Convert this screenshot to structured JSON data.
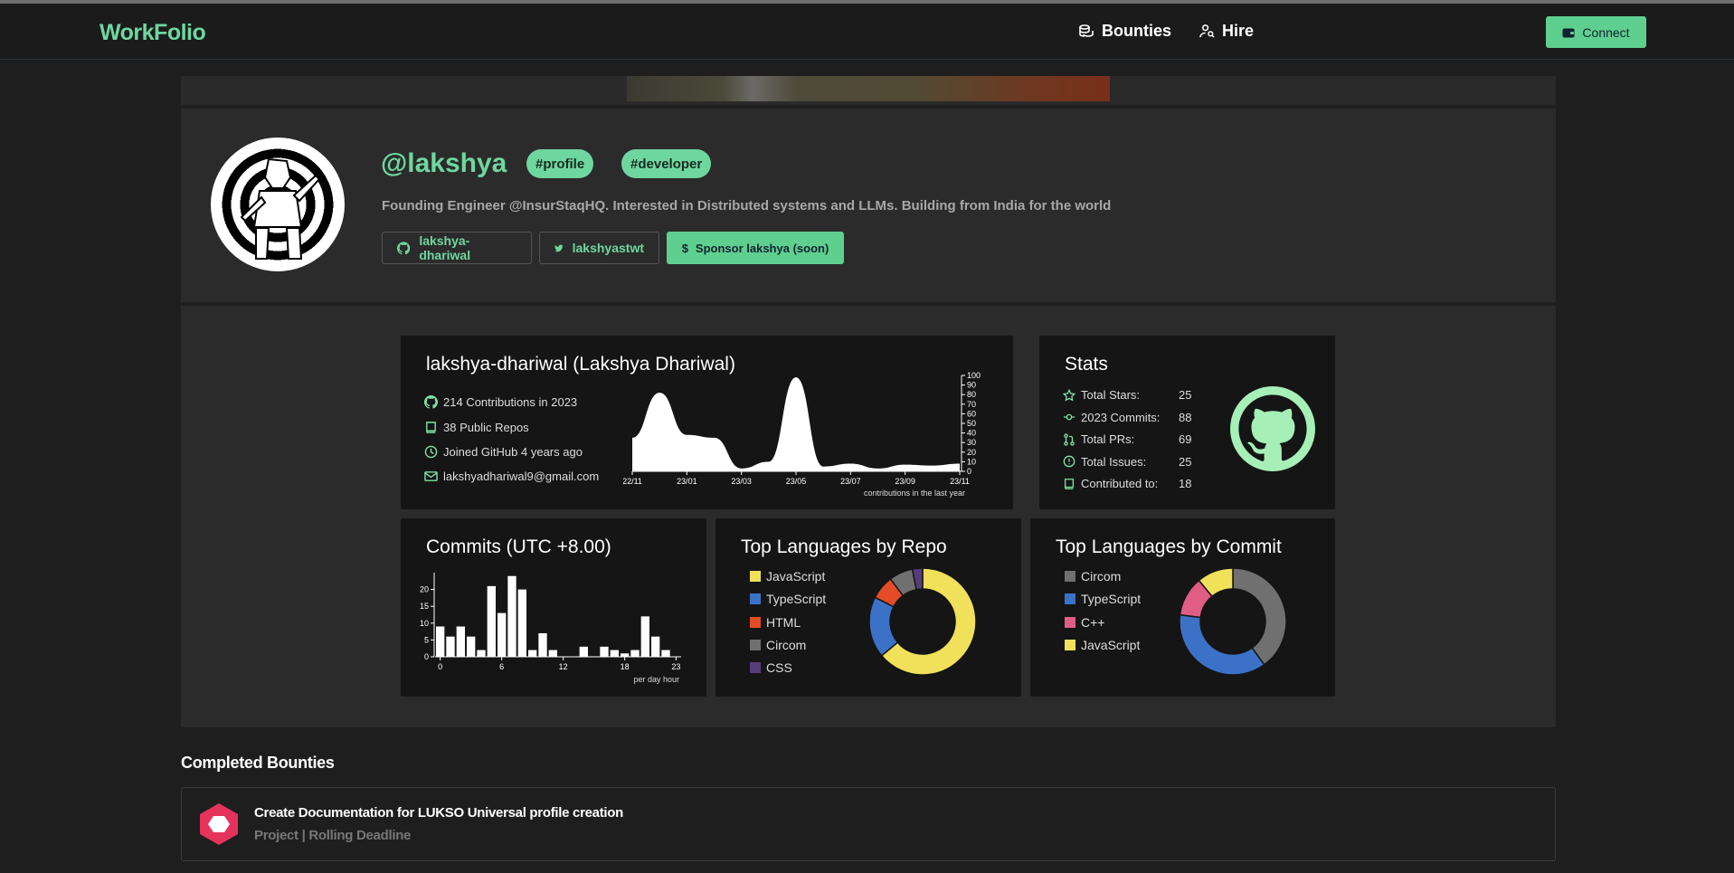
{
  "nav": {
    "logo": "WorkFolio",
    "bounties": "Bounties",
    "hire": "Hire",
    "connect": "Connect"
  },
  "profile": {
    "handle": "@lakshya",
    "tags": [
      "#profile",
      "#developer"
    ],
    "bio": "Founding Engineer @InsurStaqHQ. Interested in Distributed systems and LLMs. Building from India for the world",
    "github": "lakshya-dhariwal",
    "twitter": "lakshyastwt",
    "sponsor": "Sponsor lakshya (soon)"
  },
  "github_card": {
    "title": "lakshya-dhariwal (Lakshya Dhariwal)",
    "contributions": "214 Contributions in 2023",
    "repos": "38 Public Repos",
    "joined": "Joined GitHub 4 years ago",
    "email": "lakshyadhariwal9@gmail.com"
  },
  "stats_card": {
    "title": "Stats",
    "rows": [
      {
        "label": "Total Stars:",
        "value": "25",
        "icon": "star-icon"
      },
      {
        "label": "2023 Commits:",
        "value": "88",
        "icon": "commit-icon"
      },
      {
        "label": "Total PRs:",
        "value": "69",
        "icon": "pull-request-icon"
      },
      {
        "label": "Total Issues:",
        "value": "25",
        "icon": "issue-icon"
      },
      {
        "label": "Contributed to:",
        "value": "18",
        "icon": "repo-icon"
      }
    ]
  },
  "commits_card": {
    "title": "Commits (UTC +8.00)"
  },
  "repo_lang_card": {
    "title": "Top Languages by Repo"
  },
  "commit_lang_card": {
    "title": "Top Languages by Commit"
  },
  "chart_data": [
    {
      "type": "area",
      "title": "",
      "xlabel": "contributions in the last year",
      "x": [
        "22/11",
        "22/12",
        "23/01",
        "23/02",
        "23/03",
        "23/04",
        "23/05",
        "23/06",
        "23/07",
        "23/08",
        "23/09",
        "23/10",
        "23/11"
      ],
      "values": [
        35,
        82,
        38,
        35,
        3,
        10,
        98,
        5,
        8,
        3,
        7,
        6,
        8
      ],
      "xticks": [
        "22/11",
        "23/01",
        "23/03",
        "23/05",
        "23/07",
        "23/09",
        "23/11"
      ],
      "yticks": [
        0,
        10,
        20,
        30,
        40,
        50,
        60,
        70,
        80,
        90,
        100
      ],
      "ylim": [
        0,
        100
      ]
    },
    {
      "type": "bar",
      "title": "Commits (UTC +8.00)",
      "xlabel": "per day hour",
      "categories": [
        0,
        1,
        2,
        3,
        4,
        5,
        6,
        7,
        8,
        9,
        10,
        11,
        12,
        13,
        14,
        15,
        16,
        17,
        18,
        19,
        20,
        21,
        22,
        23
      ],
      "values": [
        9,
        6,
        9,
        6,
        2,
        21,
        13,
        24,
        20,
        2,
        7,
        2,
        0,
        0,
        3,
        0,
        3,
        2,
        1,
        2,
        12,
        6,
        2,
        0
      ],
      "xticks": [
        0,
        6,
        12,
        18,
        23
      ],
      "yticks": [
        0,
        5,
        10,
        15,
        20
      ],
      "ylim": [
        0,
        25
      ]
    },
    {
      "type": "pie",
      "title": "Top Languages by Repo",
      "series": [
        {
          "name": "JavaScript",
          "value": 62,
          "color": "#f1e05a"
        },
        {
          "name": "TypeScript",
          "value": 18,
          "color": "#3b72c8"
        },
        {
          "name": "HTML",
          "value": 7,
          "color": "#e34c26"
        },
        {
          "name": "Circom",
          "value": 7,
          "color": "#707070"
        },
        {
          "name": "CSS",
          "value": 3,
          "color": "#563d7c"
        }
      ]
    },
    {
      "type": "pie",
      "title": "Top Languages by Commit",
      "series": [
        {
          "name": "Circom",
          "value": 40,
          "color": "#707070"
        },
        {
          "name": "TypeScript",
          "value": 37,
          "color": "#3b72c8"
        },
        {
          "name": "C++",
          "value": 12,
          "color": "#e05d86"
        },
        {
          "name": "JavaScript",
          "value": 11,
          "color": "#f1e05a"
        }
      ]
    }
  ],
  "completed": {
    "title": "Completed Bounties",
    "items": [
      {
        "title": "Create Documentation for LUKSO Universal profile creation",
        "subtitle": "Project | Rolling Deadline"
      }
    ]
  }
}
